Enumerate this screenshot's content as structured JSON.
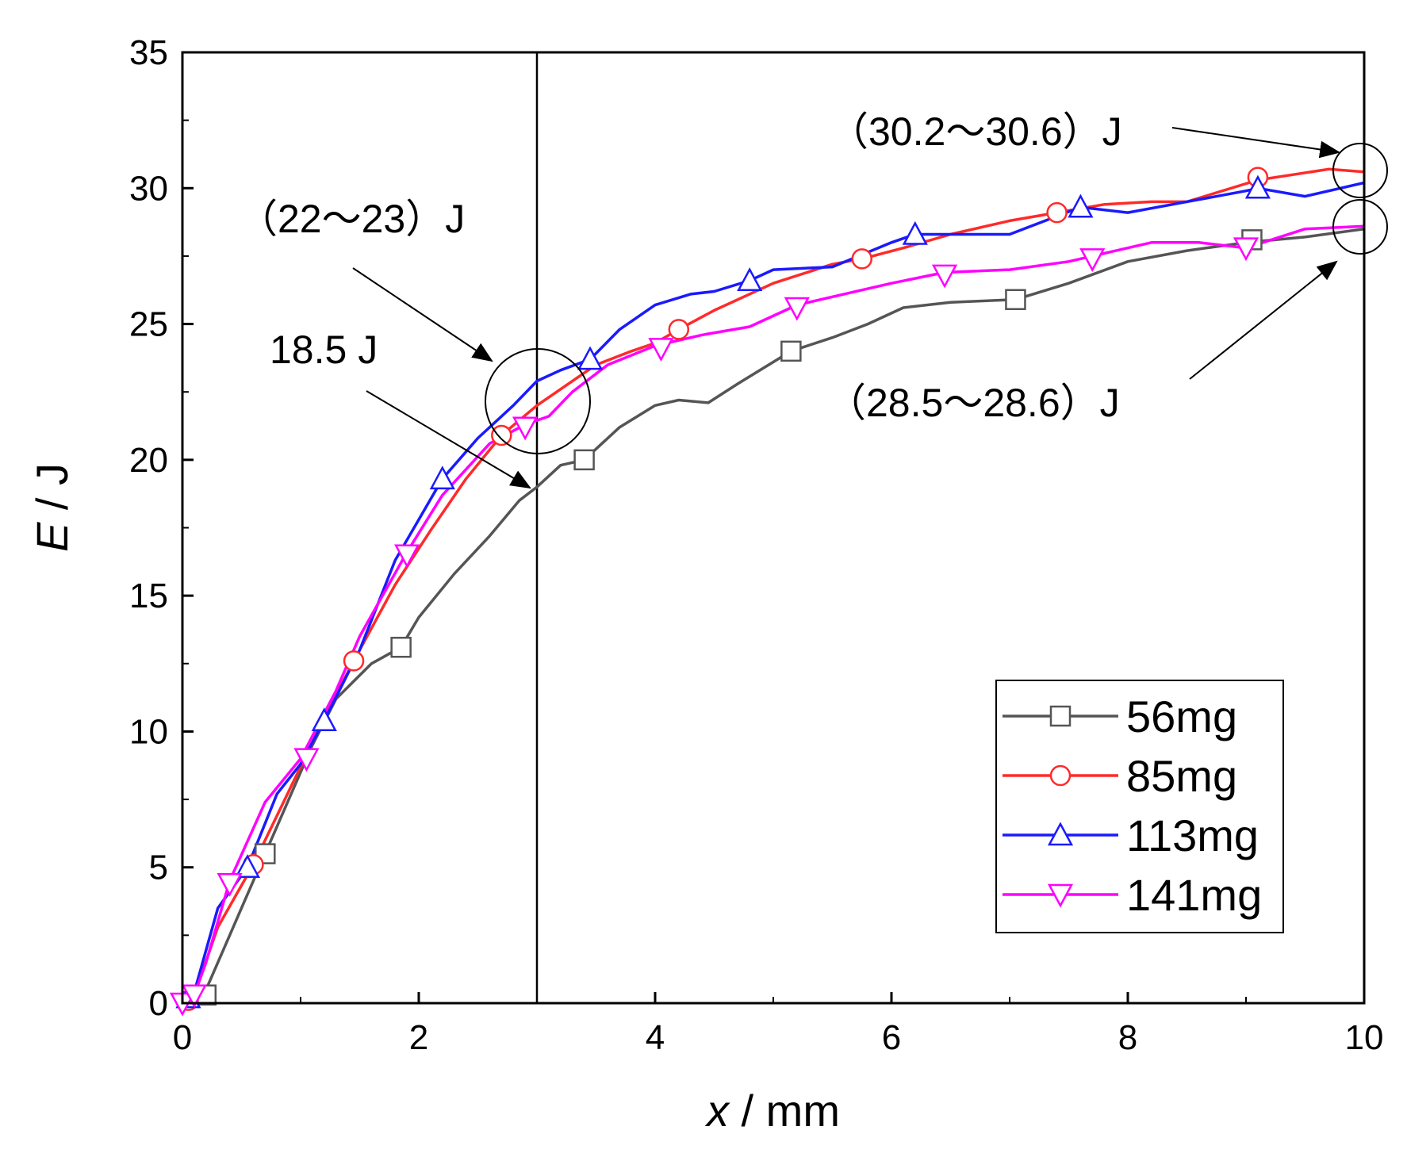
{
  "chart_data": {
    "type": "line",
    "title": "",
    "xlabel": {
      "var": "x",
      "unit": " / mm"
    },
    "ylabel": {
      "var": "E",
      "unit": " / J"
    },
    "xlim": [
      0,
      10
    ],
    "ylim": [
      0,
      35
    ],
    "xticks": [
      0,
      2,
      4,
      6,
      8,
      10
    ],
    "yticks": [
      0,
      5,
      10,
      15,
      20,
      25,
      30,
      35
    ],
    "grid": false,
    "legend_position": "bottom-right",
    "reference_line_x": 3,
    "series": [
      {
        "name": "56mg",
        "color": "#555555",
        "marker": "square",
        "x": [
          0,
          0.1,
          0.2,
          0.4,
          0.6,
          0.7,
          0.9,
          1.1,
          1.3,
          1.6,
          1.85,
          2.0,
          2.3,
          2.6,
          2.85,
          3.0,
          3.2,
          3.4,
          3.7,
          4.0,
          4.2,
          4.45,
          4.7,
          5.0,
          5.15,
          5.5,
          5.8,
          6.1,
          6.5,
          7.05,
          7.5,
          8.0,
          8.5,
          9.0,
          9.5,
          10.0
        ],
        "y": [
          0,
          0.2,
          0.5,
          2.5,
          4.5,
          5.5,
          7.5,
          9.5,
          11.2,
          12.5,
          13.1,
          14.2,
          15.8,
          17.2,
          18.5,
          19.0,
          19.8,
          20.0,
          21.2,
          22.0,
          22.2,
          22.1,
          22.8,
          23.6,
          24.0,
          24.5,
          25.0,
          25.6,
          25.8,
          25.9,
          26.5,
          27.3,
          27.7,
          28.0,
          28.2,
          28.5
        ],
        "marker_x": [
          0.2,
          0.7,
          1.85,
          3.4,
          5.15,
          7.05,
          9.05
        ],
        "marker_y": [
          0.3,
          5.5,
          13.1,
          20.0,
          24.0,
          25.9,
          28.1
        ]
      },
      {
        "name": "85mg",
        "color": "#ff2a2a",
        "marker": "circle",
        "x": [
          0,
          0.1,
          0.3,
          0.6,
          0.9,
          1.2,
          1.45,
          1.8,
          2.1,
          2.4,
          2.7,
          3.0,
          3.2,
          3.5,
          3.8,
          4.0,
          4.2,
          4.5,
          5.0,
          5.5,
          5.75,
          6.1,
          6.5,
          7.0,
          7.4,
          7.8,
          8.2,
          8.5,
          9.1,
          9.4,
          9.7,
          10.0
        ],
        "y": [
          0,
          0.3,
          2.8,
          5.1,
          7.8,
          10.5,
          12.6,
          15.4,
          17.4,
          19.3,
          20.9,
          22.0,
          22.6,
          23.5,
          24.0,
          24.3,
          24.8,
          25.5,
          26.5,
          27.2,
          27.4,
          27.8,
          28.3,
          28.8,
          29.1,
          29.4,
          29.5,
          29.5,
          30.3,
          30.5,
          30.7,
          30.6
        ],
        "marker_x": [
          0.05,
          0.6,
          1.45,
          2.7,
          4.2,
          5.75,
          7.4,
          9.1
        ],
        "marker_y": [
          0.1,
          5.1,
          12.6,
          20.9,
          24.8,
          27.4,
          29.1,
          30.4
        ]
      },
      {
        "name": "113mg",
        "color": "#1a1aff",
        "marker": "triangle-up",
        "x": [
          0,
          0.1,
          0.3,
          0.55,
          0.8,
          1.0,
          1.2,
          1.5,
          1.8,
          2.0,
          2.2,
          2.5,
          2.8,
          3.0,
          3.2,
          3.45,
          3.7,
          4.0,
          4.3,
          4.5,
          4.8,
          5.0,
          5.5,
          6.0,
          6.2,
          6.5,
          7.0,
          7.3,
          7.6,
          8.0,
          8.5,
          9.0,
          9.1,
          9.5,
          10.0
        ],
        "y": [
          0,
          0.4,
          3.5,
          5.0,
          7.7,
          8.8,
          10.4,
          13.0,
          16.3,
          17.8,
          19.3,
          20.8,
          22.0,
          22.9,
          23.3,
          23.7,
          24.8,
          25.7,
          26.1,
          26.2,
          26.6,
          27.0,
          27.1,
          28.0,
          28.3,
          28.3,
          28.3,
          28.8,
          29.3,
          29.1,
          29.5,
          29.9,
          30.0,
          29.7,
          30.2
        ],
        "marker_x": [
          0.05,
          0.55,
          1.2,
          2.2,
          3.45,
          4.8,
          6.2,
          7.6,
          9.1
        ],
        "marker_y": [
          0.2,
          5.0,
          10.4,
          19.3,
          23.7,
          26.6,
          28.3,
          29.3,
          30.0
        ]
      },
      {
        "name": "141mg",
        "color": "#ff00ff",
        "marker": "triangle-down",
        "x": [
          0,
          0.1,
          0.2,
          0.4,
          0.7,
          1.0,
          1.3,
          1.5,
          1.9,
          2.2,
          2.6,
          2.9,
          3.1,
          3.3,
          3.6,
          4.0,
          4.4,
          4.8,
          5.2,
          5.5,
          6.0,
          6.45,
          7.0,
          7.5,
          7.7,
          8.2,
          8.6,
          9.0,
          9.5,
          10.0
        ],
        "y": [
          0,
          0.3,
          1.5,
          4.5,
          7.4,
          9.0,
          11.5,
          13.5,
          16.6,
          18.7,
          20.6,
          21.3,
          21.6,
          22.5,
          23.5,
          24.2,
          24.6,
          24.9,
          25.7,
          26.0,
          26.5,
          26.9,
          27.0,
          27.3,
          27.5,
          28.0,
          28.0,
          27.8,
          28.5,
          28.6
        ],
        "marker_x": [
          0,
          0.1,
          0.4,
          1.05,
          1.9,
          2.9,
          4.05,
          5.2,
          6.45,
          7.7,
          9.0
        ],
        "marker_y": [
          0,
          0.3,
          4.4,
          9.0,
          16.5,
          21.2,
          24.1,
          25.6,
          26.8,
          27.4,
          27.8
        ]
      }
    ],
    "annotations": [
      {
        "label": "（30.2～30.6）J"
      },
      {
        "label": "（22～23）J"
      },
      {
        "label": "18.5 J"
      },
      {
        "label": "（28.5～28.6）J"
      }
    ]
  }
}
